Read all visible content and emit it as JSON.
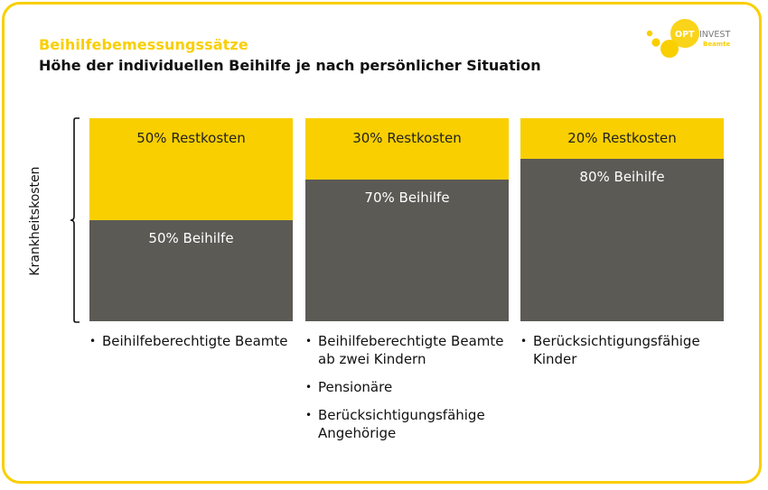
{
  "chart_data": {
    "type": "bar",
    "stacked": true,
    "title": "Beihilfebemessungssätze",
    "subtitle": "Höhe der individuellen Beihilfe je nach persönlicher Situation",
    "ylabel": "Krankheitskosten",
    "ylim": [
      0,
      100
    ],
    "grid": false,
    "series": [
      {
        "name": "Beihilfe",
        "values": [
          50,
          70,
          80
        ]
      },
      {
        "name": "Restkosten",
        "values": [
          50,
          30,
          20
        ]
      }
    ],
    "columns": [
      {
        "rest_label": "50% Restkosten",
        "aid_label": "50% Beihilfe",
        "groups": [
          "Beihilfeberechtigte Beamte"
        ]
      },
      {
        "rest_label": "30% Restkosten",
        "aid_label": "70% Beihilfe",
        "groups": [
          "Beihilfeberechtigte Beamte ab zwei Kindern",
          "Pensionäre",
          "Berücksichtigungsfähige Angehörige"
        ]
      },
      {
        "rest_label": "20% Restkosten",
        "aid_label": "80% Beihilfe",
        "groups": [
          "Berücksichtigungsfähige Kinder"
        ]
      }
    ]
  },
  "logo": {
    "brand_left": "OPT",
    "brand_right": "INVEST",
    "tagline": "Beamte"
  },
  "colors": {
    "accent": "#f9cf00",
    "aid": "#5c5a55",
    "text": "#111111"
  }
}
